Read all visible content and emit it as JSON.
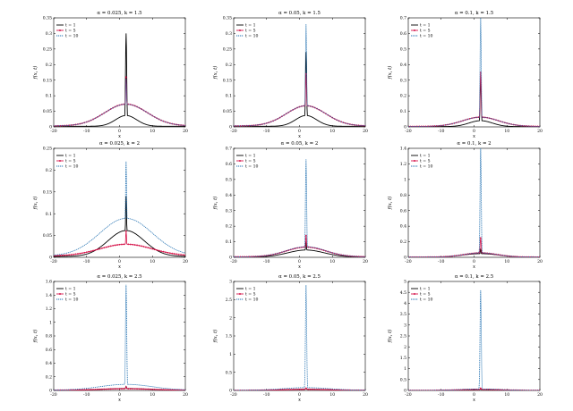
{
  "figure": {
    "background": "#ffffff"
  },
  "colors": {
    "t1": "#000000",
    "t5": "#d6144a",
    "t10": "#1f6fb0"
  },
  "chart_data": [
    {
      "type": "line",
      "title": "α = 0.025, k = 1.5",
      "xlabel": "x",
      "ylabel": "f(x, t)",
      "xlim": [
        -20,
        20
      ],
      "ylim": [
        0,
        0.35
      ],
      "xticks": [
        -20,
        -10,
        0,
        10,
        20
      ],
      "yticks": [
        0,
        0.05,
        0.1,
        0.15,
        0.2,
        0.25,
        0.3,
        0.35
      ],
      "ytick_labels": [
        "0",
        "0.05",
        "0.1",
        "0.15",
        "0.2",
        "0.25",
        "0.3",
        "0.35"
      ],
      "grid": false,
      "legend": "top-left",
      "series": [
        {
          "name": "t = 1",
          "style": "solid",
          "peak": 0.3,
          "width": 3.2,
          "base": 0.002
        },
        {
          "name": "t = 5",
          "style": "solid-marker",
          "peak": 0.16,
          "width": 6.5,
          "base": 0.003
        },
        {
          "name": "t = 10",
          "style": "dotted",
          "peak": 0.155,
          "width": 6.5,
          "base": 0.003
        }
      ]
    },
    {
      "type": "line",
      "title": "α = 0.05, k = 1.5",
      "xlabel": "x",
      "ylabel": "f(x, t)",
      "xlim": [
        -20,
        20
      ],
      "ylim": [
        0,
        0.35
      ],
      "xticks": [
        -20,
        -10,
        0,
        10,
        20
      ],
      "yticks": [
        0,
        0.05,
        0.1,
        0.15,
        0.2,
        0.25,
        0.3,
        0.35
      ],
      "ytick_labels": [
        "0",
        "0.05",
        "0.1",
        "0.15",
        "0.2",
        "0.25",
        "0.3",
        "0.35"
      ],
      "grid": false,
      "legend": "top-left",
      "series": [
        {
          "name": "t = 1",
          "style": "solid",
          "peak": 0.24,
          "width": 3.2,
          "base": 0.002
        },
        {
          "name": "t = 5",
          "style": "solid-marker",
          "peak": 0.17,
          "width": 6.0,
          "base": 0.003
        },
        {
          "name": "t = 10",
          "style": "dotted",
          "peak": 0.33,
          "width": 6.0,
          "base": 0.003
        }
      ]
    },
    {
      "type": "line",
      "title": "α = 0.1, k = 1.5",
      "xlabel": "x",
      "ylabel": "f(x, t)",
      "xlim": [
        -20,
        20
      ],
      "ylim": [
        0,
        0.7
      ],
      "xticks": [
        -20,
        -10,
        0,
        10,
        20
      ],
      "yticks": [
        0,
        0.1,
        0.2,
        0.3,
        0.4,
        0.5,
        0.6,
        0.7
      ],
      "ytick_labels": [
        "0",
        "0.1",
        "0.2",
        "0.3",
        "0.4",
        "0.5",
        "0.6",
        "0.7"
      ],
      "grid": false,
      "legend": "top-left",
      "series": [
        {
          "name": "t = 1",
          "style": "solid",
          "peak": 0.3,
          "width": 3.5,
          "base": 0.002
        },
        {
          "name": "t = 5",
          "style": "solid-marker",
          "peak": 0.35,
          "width": 5.5,
          "base": 0.003
        },
        {
          "name": "t = 10",
          "style": "dotted",
          "peak": 0.7,
          "width": 5.5,
          "base": 0.003
        }
      ]
    },
    {
      "type": "line",
      "title": "α = 0.025, k = 2",
      "xlabel": "x",
      "ylabel": "f(x, t)",
      "xlim": [
        -20,
        20
      ],
      "ylim": [
        0,
        0.25
      ],
      "xticks": [
        -20,
        -10,
        0,
        10,
        20
      ],
      "yticks": [
        0,
        0.05,
        0.1,
        0.15,
        0.2,
        0.25
      ],
      "ytick_labels": [
        "0",
        "0.05",
        "0.1",
        "0.15",
        "0.2",
        "0.25"
      ],
      "grid": false,
      "legend": "top-left",
      "series": [
        {
          "name": "t = 1",
          "style": "solid",
          "peak": 0.14,
          "width": 5.5,
          "base": 0.002
        },
        {
          "name": "t = 5",
          "style": "solid-marker",
          "peak": 0.06,
          "width": 8.0,
          "base": 0.003
        },
        {
          "name": "t = 10",
          "style": "dotted",
          "peak": 0.22,
          "width": 8.0,
          "base": 0.003
        }
      ]
    },
    {
      "type": "line",
      "title": "α = 0.05, k = 2",
      "xlabel": "x",
      "ylabel": "f(x, t)",
      "xlim": [
        -20,
        20
      ],
      "ylim": [
        0,
        0.7
      ],
      "xticks": [
        -20,
        -10,
        0,
        10,
        20
      ],
      "yticks": [
        0,
        0.1,
        0.2,
        0.3,
        0.4,
        0.5,
        0.6,
        0.7
      ],
      "ytick_labels": [
        "0",
        "0.1",
        "0.2",
        "0.3",
        "0.4",
        "0.5",
        "0.6",
        "0.7"
      ],
      "grid": false,
      "legend": "top-left",
      "series": [
        {
          "name": "t = 1",
          "style": "solid",
          "peak": 0.1,
          "width": 5.5,
          "base": 0.002
        },
        {
          "name": "t = 5",
          "style": "solid-marker",
          "peak": 0.14,
          "width": 6.0,
          "base": 0.003
        },
        {
          "name": "t = 10",
          "style": "dotted",
          "peak": 0.63,
          "width": 6.0,
          "base": 0.003
        }
      ]
    },
    {
      "type": "line",
      "title": "α = 0.1, k = 2",
      "xlabel": "x",
      "ylabel": "f(x, t)",
      "xlim": [
        -20,
        20
      ],
      "ylim": [
        0,
        1.4
      ],
      "xticks": [
        -20,
        -10,
        0,
        10,
        20
      ],
      "yticks": [
        0,
        0.2,
        0.4,
        0.6,
        0.8,
        1,
        1.2,
        1.4
      ],
      "ytick_labels": [
        "0",
        "0.2",
        "0.4",
        "0.6",
        "0.8",
        "1",
        "1.2",
        "1.4"
      ],
      "grid": false,
      "legend": "top-left",
      "series": [
        {
          "name": "t = 1",
          "style": "solid",
          "peak": 0.1,
          "width": 5.5,
          "base": 0.002
        },
        {
          "name": "t = 5",
          "style": "solid-marker",
          "peak": 0.25,
          "width": 5.0,
          "base": 0.003
        },
        {
          "name": "t = 10",
          "style": "dotted",
          "peak": 1.4,
          "width": 5.0,
          "base": 0.003
        }
      ]
    },
    {
      "type": "line",
      "title": "α = 0.025, k = 2.5",
      "xlabel": "x",
      "ylabel": "f(x, t)",
      "xlim": [
        -20,
        20
      ],
      "ylim": [
        0,
        1.6
      ],
      "xticks": [
        -20,
        -10,
        0,
        10,
        20
      ],
      "yticks": [
        0,
        0.2,
        0.4,
        0.6,
        0.8,
        1,
        1.2,
        1.4,
        1.6
      ],
      "ytick_labels": [
        "0",
        "0.2",
        "0.4",
        "0.6",
        "0.8",
        "1",
        "1.2",
        "1.4",
        "1.6"
      ],
      "grid": false,
      "legend": "top-left",
      "series": [
        {
          "name": "t = 1",
          "style": "solid",
          "peak": 0.06,
          "width": 7.0,
          "base": 0.002
        },
        {
          "name": "t = 5",
          "style": "solid-marker",
          "peak": 0.05,
          "width": 8.0,
          "base": 0.003
        },
        {
          "name": "t = 10",
          "style": "dotted",
          "peak": 1.55,
          "width": 8.0,
          "base": 0.003
        }
      ]
    },
    {
      "type": "line",
      "title": "α = 0.05, k = 2.5",
      "xlabel": "x",
      "ylabel": "f(x, t)",
      "xlim": [
        -20,
        20
      ],
      "ylim": [
        0,
        3
      ],
      "xticks": [
        -20,
        -10,
        0,
        10,
        20
      ],
      "yticks": [
        0,
        0.5,
        1,
        1.5,
        2,
        2.5,
        3
      ],
      "ytick_labels": [
        "0",
        "0.5",
        "1",
        "1.5",
        "2",
        "2.5",
        "3"
      ],
      "grid": false,
      "legend": "top-left",
      "series": [
        {
          "name": "t = 1",
          "style": "solid",
          "peak": 0.07,
          "width": 6.0,
          "base": 0.002
        },
        {
          "name": "t = 5",
          "style": "solid-marker",
          "peak": 0.06,
          "width": 7.0,
          "base": 0.003
        },
        {
          "name": "t = 10",
          "style": "dotted",
          "peak": 2.9,
          "width": 7.0,
          "base": 0.003
        }
      ]
    },
    {
      "type": "line",
      "title": "α = 0.1, k = 2.5",
      "xlabel": "x",
      "ylabel": "f(x, t)",
      "xlim": [
        -20,
        20
      ],
      "ylim": [
        0,
        5
      ],
      "xticks": [
        -20,
        -10,
        0,
        10,
        20
      ],
      "yticks": [
        0,
        0.5,
        1,
        1.5,
        2,
        2.5,
        3,
        3.5,
        4,
        4.5,
        5
      ],
      "ytick_labels": [
        "0",
        "0.5",
        "1",
        "1.5",
        "2",
        "2.5",
        "3",
        "3.5",
        "4",
        "4.5",
        "5"
      ],
      "grid": false,
      "legend": "top-left",
      "series": [
        {
          "name": "t = 1",
          "style": "solid",
          "peak": 0.08,
          "width": 5.5,
          "base": 0.002
        },
        {
          "name": "t = 5",
          "style": "solid-marker",
          "peak": 0.1,
          "width": 6.0,
          "base": 0.003
        },
        {
          "name": "t = 10",
          "style": "dotted",
          "peak": 4.6,
          "width": 6.0,
          "base": 0.003
        }
      ]
    }
  ]
}
